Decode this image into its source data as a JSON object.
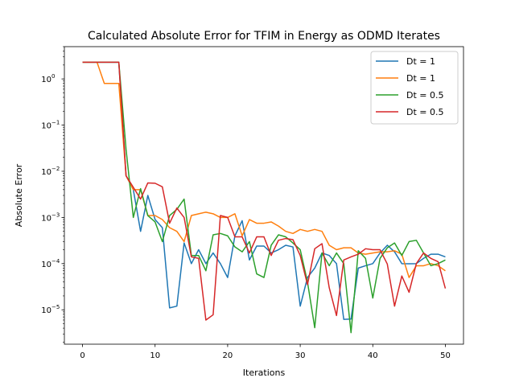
{
  "chart_data": {
    "type": "line",
    "title": "Calculated Absolute Error for TFIM in Energy as ODMD Iterates",
    "xlabel": "Iterations",
    "ylabel": "Absolute Error",
    "yscale": "log",
    "xlim": [
      -2.5,
      52.5
    ],
    "ylim": [
      1.8e-06,
      5.0
    ],
    "grid": false,
    "legend_position": "top-right",
    "xticks": [
      0,
      10,
      20,
      30,
      40,
      50
    ],
    "xtick_labels": [
      "0",
      "10",
      "20",
      "30",
      "40",
      "50"
    ],
    "yticks": [
      1e-05,
      0.0001,
      0.001,
      0.01,
      0.1,
      1
    ],
    "ytick_labels": [
      "10",
      "10",
      "10",
      "10",
      "10",
      "10"
    ],
    "ytick_exponents": [
      "−5",
      "−4",
      "−3",
      "−2",
      "−1",
      "0"
    ],
    "x": [
      0,
      1,
      2,
      3,
      4,
      5,
      6,
      7,
      8,
      9,
      10,
      11,
      12,
      13,
      14,
      15,
      16,
      17,
      18,
      19,
      20,
      21,
      22,
      23,
      24,
      25,
      26,
      27,
      28,
      29,
      30,
      31,
      32,
      33,
      34,
      35,
      36,
      37,
      38,
      39,
      40,
      41,
      42,
      43,
      44,
      45,
      46,
      47,
      48,
      49,
      50
    ],
    "series": [
      {
        "name": "Dt = 1",
        "color": "#1f77b4",
        "values": [
          2.3,
          2.3,
          2.3,
          2.3,
          2.3,
          2.3,
          0.008,
          0.004,
          0.0005,
          0.003,
          0.0009,
          0.0006,
          1.1e-05,
          1.2e-05,
          0.00028,
          0.0001,
          0.0002,
          0.0001,
          0.00017,
          0.0001,
          5e-05,
          0.0004,
          0.00085,
          0.00012,
          0.00024,
          0.00024,
          0.00017,
          0.0002,
          0.00025,
          0.00023,
          1.2e-05,
          5e-05,
          8e-05,
          0.00017,
          0.00015,
          0.0001,
          6.2e-06,
          6.3e-06,
          8e-05,
          9e-05,
          0.0001,
          0.00017,
          0.00025,
          0.00018,
          0.0001,
          9.95e-05,
          0.0001,
          0.00013,
          0.00016,
          0.00016,
          0.00014
        ]
      },
      {
        "name": "Dt = 1",
        "color": "#ff7f0e",
        "values": [
          2.3,
          2.3,
          2.3,
          0.8,
          0.8,
          0.8,
          0.008,
          0.004,
          0.004,
          0.0011,
          0.0011,
          0.0009,
          0.0006,
          0.0005,
          0.0003,
          0.0011,
          0.0012,
          0.0013,
          0.0012,
          0.001,
          0.001,
          0.0012,
          0.0004,
          0.0009,
          0.00075,
          0.00075,
          0.0008,
          0.00065,
          0.0005,
          0.00045,
          0.00055,
          0.0005,
          0.00055,
          0.0005,
          0.00025,
          0.0002,
          0.00022,
          0.00022,
          0.00017,
          0.00016,
          0.00017,
          0.00018,
          0.00018,
          0.00019,
          0.00016,
          5e-05,
          9e-05,
          9e-05,
          0.0001,
          9e-05,
          7e-05
        ]
      },
      {
        "name": "Dt = 0.5",
        "color": "#2ca02c",
        "values": [
          2.3,
          2.3,
          2.3,
          2.3,
          2.3,
          2.3,
          0.03,
          0.001,
          0.0042,
          0.0011,
          0.0008,
          0.0003,
          0.0011,
          0.0015,
          0.0025,
          0.00015,
          0.00015,
          7e-05,
          0.00042,
          0.00045,
          0.0004,
          0.00023,
          0.00018,
          0.0003,
          6e-05,
          5e-05,
          0.00025,
          0.00042,
          0.00038,
          0.00028,
          0.0002,
          4e-05,
          4.1e-06,
          0.00017,
          9e-05,
          0.00017,
          0.0001,
          3.2e-06,
          0.00019,
          0.00013,
          1.8e-05,
          0.00013,
          0.00022,
          0.00028,
          0.00015,
          0.0003,
          0.00032,
          0.00017,
          9e-05,
          0.0001,
          0.00012
        ]
      },
      {
        "name": "Dt = 0.5",
        "color": "#d62728",
        "values": [
          2.3,
          2.3,
          2.3,
          2.3,
          2.3,
          2.3,
          0.008,
          0.0045,
          0.0025,
          0.0056,
          0.0055,
          0.0046,
          0.00075,
          0.0016,
          0.001,
          0.00014,
          0.00013,
          6e-06,
          7.8e-06,
          0.0011,
          0.001,
          0.00038,
          0.00038,
          0.00017,
          0.00038,
          0.00038,
          0.00015,
          0.00032,
          0.00035,
          0.00033,
          0.00015,
          3.5e-05,
          0.00021,
          0.00027,
          3e-05,
          7.5e-06,
          0.00012,
          0.00014,
          0.00016,
          0.00021,
          0.0002,
          0.0002,
          9.8e-05,
          1.2e-05,
          5.4e-05,
          2.4e-05,
          0.0001,
          0.00017,
          0.00013,
          0.00011,
          2.9e-05
        ]
      }
    ]
  }
}
